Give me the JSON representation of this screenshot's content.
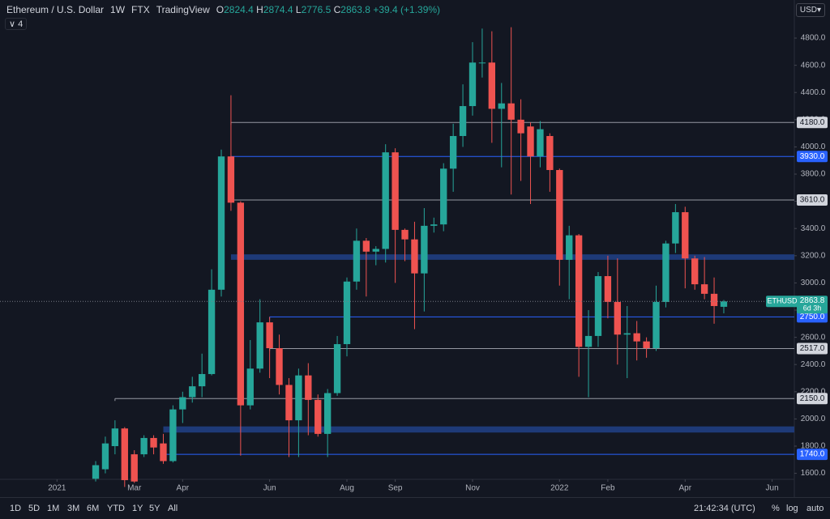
{
  "chart_data": {
    "type": "candlestick",
    "title": "Ethereum / U.S. Dollar",
    "interval": "1W",
    "exchange": "FTX",
    "source": "TradingView",
    "ohlc_labels": [
      "O",
      "H",
      "L",
      "C"
    ],
    "change": "+39.4 (+1.39%)",
    "symbol": "ETHUSD",
    "countdown": "6d 3h",
    "currency": "USD",
    "indicator_count": "4",
    "up_color": "#26a69a",
    "down_color": "#ef5350",
    "categories": [
      null,
      null,
      null,
      null,
      null,
      null,
      null,
      null,
      null,
      null,
      null,
      null,
      null,
      null,
      null,
      null,
      null,
      null,
      null,
      null,
      null,
      null,
      null,
      null,
      null,
      null,
      null,
      null,
      null,
      null,
      null,
      null,
      null,
      null,
      null,
      null,
      null,
      null,
      null,
      null,
      null,
      null,
      null,
      null,
      null,
      null,
      null,
      null,
      null,
      null,
      null,
      null,
      null,
      null,
      null,
      null,
      null,
      null,
      null,
      null,
      null,
      null,
      null,
      null,
      null,
      null
    ],
    "open": [
      1560,
      1630,
      1800,
      1930,
      1740,
      1740,
      1860,
      1820,
      1690,
      2070,
      2160,
      2240,
      2330,
      2950,
      3930,
      3590,
      2100,
      2370,
      2710,
      2520,
      2250,
      1990,
      2320,
      2140,
      1890,
      2190,
      2550,
      3010,
      3310,
      3230,
      3250,
      3960,
      3390,
      3320,
      3070,
      3420,
      3430,
      3840,
      4080,
      4300,
      4620,
      4620,
      4280,
      4320,
      4200,
      4150,
      3930,
      4080,
      3830,
      3170,
      3350,
      2530,
      2610,
      3050,
      2860,
      2620,
      2630,
      2570,
      2520,
      2860,
      3290,
      3520,
      3180,
      2990,
      2920,
      2824.4
    ],
    "high": [
      1690,
      1870,
      1990,
      1940,
      1770,
      1880,
      1880,
      1890,
      2100,
      2200,
      2310,
      2480,
      3100,
      3980,
      4380,
      3600,
      2580,
      2880,
      2750,
      2620,
      2300,
      2370,
      2410,
      2180,
      2220,
      2610,
      3040,
      3400,
      3330,
      3270,
      4020,
      3990,
      3400,
      3450,
      3550,
      3480,
      3880,
      4170,
      4460,
      4770,
      4870,
      4850,
      4470,
      4880,
      4350,
      4180,
      4190,
      4100,
      3840,
      3420,
      3360,
      2800,
      3080,
      3200,
      3180,
      2830,
      2720,
      2600,
      2980,
      3310,
      3580,
      3560,
      3200,
      3190,
      3040,
      2874.4
    ],
    "low": [
      1540,
      1600,
      1740,
      1500,
      1530,
      1720,
      1740,
      1670,
      1680,
      1970,
      2120,
      2160,
      2320,
      2900,
      3530,
      1730,
      2070,
      2340,
      2300,
      2180,
      1720,
      1720,
      1880,
      1870,
      1720,
      2170,
      2460,
      2950,
      2900,
      3130,
      3150,
      3000,
      3160,
      2660,
      2790,
      3370,
      3380,
      3670,
      4000,
      4230,
      4510,
      4030,
      3850,
      3650,
      3750,
      3580,
      3850,
      3670,
      2980,
      2880,
      2310,
      2160,
      2530,
      2740,
      2400,
      2300,
      2430,
      2450,
      2500,
      2820,
      3220,
      2960,
      2950,
      2880,
      2700,
      2776.5
    ],
    "close": [
      1660,
      1820,
      1930,
      1550,
      1540,
      1860,
      1790,
      1690,
      2070,
      2160,
      2240,
      2330,
      2950,
      3930,
      3590,
      2100,
      2370,
      2710,
      2520,
      2250,
      1990,
      2320,
      2140,
      1890,
      2190,
      2550,
      3010,
      3310,
      3230,
      3250,
      3960,
      3390,
      3320,
      3070,
      3420,
      3430,
      3840,
      4080,
      4300,
      4620,
      4620,
      4280,
      4320,
      4200,
      4100,
      3930,
      4130,
      3830,
      3170,
      3350,
      2530,
      2610,
      3050,
      2860,
      2620,
      2630,
      2570,
      2520,
      2860,
      3290,
      3520,
      3180,
      2990,
      2920,
      2830,
      2863.8
    ],
    "xlim": [
      -9.9,
      72.3
    ],
    "xticks": [
      {
        "value": -4,
        "label": "2021"
      },
      {
        "value": 4,
        "label": "Mar"
      },
      {
        "value": 9,
        "label": "Apr"
      },
      {
        "value": 18,
        "label": "Jun"
      },
      {
        "value": 26,
        "label": "Aug"
      },
      {
        "value": 31,
        "label": "Sep"
      },
      {
        "value": 39,
        "label": "Nov"
      },
      {
        "value": 48,
        "label": "2022"
      },
      {
        "value": 53,
        "label": "Feb"
      },
      {
        "value": 61,
        "label": "Apr"
      },
      {
        "value": 70,
        "label": "Jun"
      }
    ],
    "ylim": [
      1556,
      5080
    ],
    "yticks": [
      {
        "value": 1600,
        "label": "1600.0"
      },
      {
        "value": 1800,
        "label": "1800.0"
      },
      {
        "value": 2000,
        "label": "2000.0"
      },
      {
        "value": 2200,
        "label": "2200.0"
      },
      {
        "value": 2400,
        "label": "2400.0"
      },
      {
        "value": 2600,
        "label": "2600.0"
      },
      {
        "value": 2800,
        "label": "2800.0"
      },
      {
        "value": 3000,
        "label": "3000.0"
      },
      {
        "value": 3200,
        "label": "3200.0"
      },
      {
        "value": 3400,
        "label": "3400.0"
      },
      {
        "value": 3600,
        "label": "3600.0"
      },
      {
        "value": 3800,
        "label": "3800.0"
      },
      {
        "value": 4000,
        "label": "4000.0"
      },
      {
        "value": 4200,
        "label": "4200.0"
      },
      {
        "value": 4400,
        "label": "4400.0"
      },
      {
        "value": 4600,
        "label": "4600.0"
      },
      {
        "value": 4800,
        "label": "4800.0"
      }
    ],
    "levels": [
      {
        "value": 4180,
        "label": "4180.0",
        "color": "#9598a1",
        "start": 14
      },
      {
        "value": 3930,
        "label": "3930.0",
        "color": "#2962ff",
        "start": 14
      },
      {
        "value": 3610,
        "label": "3610.0",
        "color": "#9598a1",
        "start": 14
      },
      {
        "value": 2750,
        "label": "2750.0",
        "color": "#2962ff",
        "start": 18
      },
      {
        "value": 2517,
        "label": "2517.0",
        "color": "#9598a1",
        "start": 18
      },
      {
        "value": 2150,
        "label": "2150.0",
        "color": "#9598a1",
        "start": 2
      },
      {
        "value": 1740,
        "label": "1740.0",
        "color": "#2962ff",
        "start": 7
      }
    ],
    "zones": [
      {
        "from": 3170,
        "to": 3210,
        "start": 14,
        "color": "#1e3a78"
      },
      {
        "from": 1900,
        "to": 1945,
        "start": 7,
        "color": "#1e3a78"
      }
    ],
    "ranges": [
      "1D",
      "5D",
      "1M",
      "3M",
      "6M",
      "YTD",
      "1Y",
      "5Y",
      "All"
    ],
    "clock": "21:42:34 (UTC)",
    "scale_options": [
      "%",
      "log",
      "auto"
    ]
  }
}
